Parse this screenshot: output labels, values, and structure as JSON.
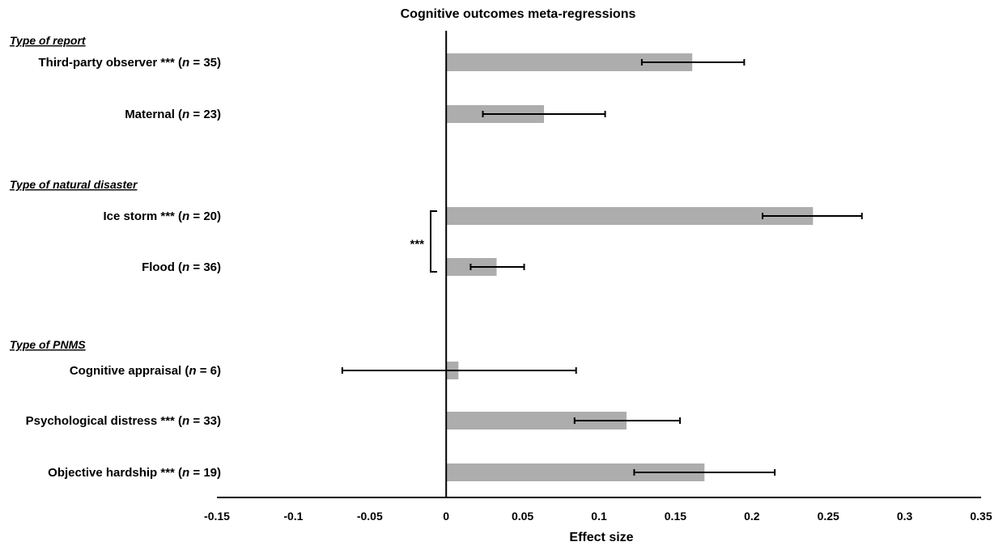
{
  "chart_data": {
    "type": "bar",
    "orientation": "horizontal",
    "title": "Cognitive outcomes meta-regressions",
    "xlabel": "Effect size",
    "ylabel": "",
    "xlim": [
      -0.15,
      0.35
    ],
    "xticks": [
      "-0.15",
      "-0.1",
      "-0.05",
      "0",
      "0.05",
      "0.1",
      "0.15",
      "0.2",
      "0.25",
      "0.3",
      "0.35"
    ],
    "grid": false,
    "legend": "none",
    "bar_color": "#ADADAD",
    "groups": [
      {
        "heading": "Type of report",
        "items": [
          {
            "label": "Third-party observer *** (n = 35)",
            "label_pre": "Third-party observer *** (",
            "n_text": "n",
            "label_post": " = 35)",
            "value": 0.161,
            "ci": [
              0.128,
              0.195
            ]
          },
          {
            "label": "Maternal (n = 23)",
            "label_pre": "Maternal (",
            "n_text": "n",
            "label_post": " = 23)",
            "value": 0.064,
            "ci": [
              0.024,
              0.104
            ]
          }
        ]
      },
      {
        "heading": "Type of natural disaster",
        "items": [
          {
            "label": "Ice storm *** (n = 20)",
            "label_pre": "Ice storm *** (",
            "n_text": "n",
            "label_post": " = 20)",
            "value": 0.24,
            "ci": [
              0.207,
              0.272
            ]
          },
          {
            "label": "Flood (n = 36)",
            "label_pre": "Flood (",
            "n_text": "n",
            "label_post": " = 36)",
            "value": 0.033,
            "ci": [
              0.016,
              0.051
            ]
          }
        ]
      },
      {
        "heading": "Type of PNMS",
        "items": [
          {
            "label": "Cognitive appraisal (n = 6)",
            "label_pre": "Cognitive appraisal (",
            "n_text": "n",
            "label_post": " = 6)",
            "value": 0.008,
            "ci": [
              -0.068,
              0.085
            ]
          },
          {
            "label": "Psychological distress *** (n = 33)",
            "label_pre": "Psychological distress *** (",
            "n_text": "n",
            "label_post": " = 33)",
            "value": 0.118,
            "ci": [
              0.084,
              0.153
            ]
          },
          {
            "label": "Objective hardship *** (n = 19)",
            "label_pre": "Objective hardship *** (",
            "n_text": "n",
            "label_post": " = 19)",
            "value": 0.169,
            "ci": [
              0.123,
              0.215
            ]
          }
        ]
      }
    ],
    "annotations": [
      {
        "text": "***",
        "spans": [
          "Ice storm *** (n = 20)",
          "Flood (n = 36)"
        ]
      }
    ]
  }
}
